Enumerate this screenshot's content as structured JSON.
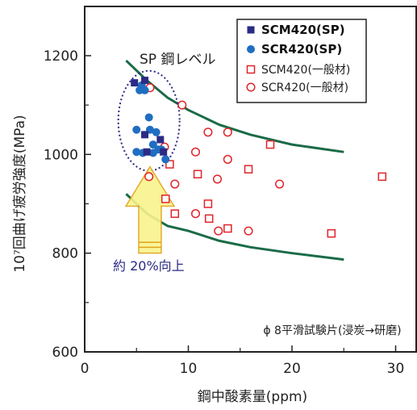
{
  "chart_data": {
    "type": "scatter",
    "xlabel": "鋼中酸素量(ppm)",
    "ylabel": "10⁷回曲げ疲労強度(MPa)",
    "xlim": [
      0,
      32
    ],
    "ylim": [
      600,
      1300
    ],
    "xticks": [
      0,
      10,
      20,
      30
    ],
    "yticks": [
      600,
      800,
      1000,
      1200
    ],
    "grid": false,
    "legend_position": "top-right",
    "series": [
      {
        "name": "SCM420(SP)",
        "marker": "filled-square",
        "color": "#2b2b86",
        "x": [
          4.8,
          5.8,
          6.0,
          7.3,
          7.6,
          5.8
        ],
        "y": [
          1145,
          1040,
          1005,
          1030,
          1005,
          1150
        ]
      },
      {
        "name": "SCR420(SP)",
        "marker": "filled-circle",
        "color": "#1f6ec2",
        "x": [
          5.3,
          5.8,
          6.2,
          5.0,
          6.3,
          6.6,
          6.9,
          7.1,
          5.0,
          5.6,
          6.6,
          7.4,
          7.8,
          5.5
        ],
        "y": [
          1130,
          1130,
          1075,
          1050,
          1050,
          1020,
          1045,
          1010,
          1005,
          1003,
          1003,
          1010,
          990,
          1140
        ]
      },
      {
        "name": "SCM420(一般材)",
        "marker": "open-square",
        "color": "#e0242a",
        "x": [
          7.8,
          8.2,
          8.7,
          10.9,
          11.9,
          12.0,
          13.8,
          15.8,
          17.9,
          28.7,
          23.8
        ],
        "y": [
          910,
          980,
          880,
          960,
          900,
          870,
          850,
          970,
          1020,
          955,
          840
        ]
      },
      {
        "name": "SCR420(一般材)",
        "marker": "open-circle",
        "color": "#e0242a",
        "x": [
          6.3,
          9.4,
          11.9,
          13.8,
          10.7,
          13.8,
          12.8,
          10.7,
          12.9,
          15.8,
          18.8,
          6.2,
          8.7,
          7.7
        ],
        "y": [
          1135,
          1100,
          1045,
          1045,
          1005,
          990,
          950,
          880,
          845,
          845,
          940,
          955,
          940,
          1015
        ]
      }
    ],
    "band_curves": {
      "upper": {
        "x": [
          4,
          6,
          8,
          10,
          13,
          16,
          20,
          25
        ],
        "y": [
          1190,
          1150,
          1115,
          1090,
          1060,
          1040,
          1020,
          1005
        ]
      },
      "lower": {
        "x": [
          4,
          6,
          8,
          10,
          13,
          16,
          20,
          25
        ],
        "y": [
          920,
          880,
          855,
          845,
          825,
          812,
          800,
          787
        ]
      }
    }
  },
  "annotations": {
    "sp_level": "SP 鋼レベル",
    "improvement": "約 20%向上",
    "condition_note": "ϕ 8平滑試験片(浸炭→研磨)"
  },
  "colors": {
    "band": "#1a6b47",
    "ellipse": "#2b2b86",
    "arrow_fill": "#f9f38c",
    "arrow_stroke": "#e0a21a",
    "axes": "#222222"
  }
}
